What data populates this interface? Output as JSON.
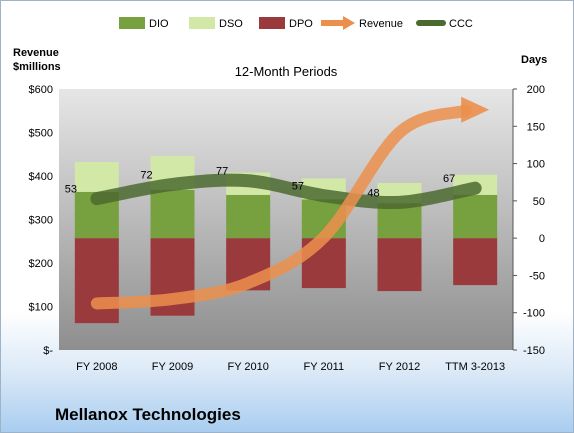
{
  "company_name": "Mellanox Technologies",
  "colors": {
    "dio": "#77a03e",
    "dso": "#d2e8a6",
    "dpo": "#9b3a3c",
    "revenue": "#ec8f4c",
    "ccc": "#4c6a30",
    "plot_bg_top": "#e6e6e6",
    "plot_bg_bottom": "#8e8e8e"
  },
  "chart_data": {
    "type": "bar",
    "title": "12-Month Periods",
    "y_left_label_line1": "Revenue",
    "y_left_label_line2": "$millions",
    "y_right_label": "Days",
    "categories": [
      "FY 2008",
      "FY 2009",
      "FY 2010",
      "FY 2011",
      "FY 2012",
      "TTM 3-2013"
    ],
    "y_left_ticks": [
      "$-",
      "$100",
      "$200",
      "$300",
      "$400",
      "$500",
      "$600"
    ],
    "y_right_ticks": [
      "-150",
      "-100",
      "-50",
      "0",
      "50",
      "100",
      "150",
      "200"
    ],
    "y_right_range": [
      -150,
      200
    ],
    "y_left_range": [
      0,
      600
    ],
    "legend": [
      "DIO",
      "DSO",
      "DPO",
      "Revenue",
      "CCC"
    ],
    "legend_position": "top",
    "series": [
      {
        "name": "DIO",
        "axis": "right",
        "values": [
          62,
          65,
          58,
          52,
          47,
          58
        ]
      },
      {
        "name": "DSO",
        "axis": "right",
        "values": [
          40,
          45,
          30,
          28,
          27,
          27
        ]
      },
      {
        "name": "DPO",
        "axis": "right",
        "values": [
          -114,
          -104,
          -70,
          -67,
          -71,
          -63
        ]
      },
      {
        "name": "Revenue",
        "axis": "left",
        "values": [
          107,
          117,
          154,
          259,
          500,
          550
        ]
      },
      {
        "name": "CCC",
        "axis": "right",
        "values": [
          53,
          72,
          77,
          57,
          48,
          67
        ]
      }
    ],
    "ccc_labels": [
      "53",
      "72",
      "77",
      "57",
      "48",
      "67"
    ]
  }
}
